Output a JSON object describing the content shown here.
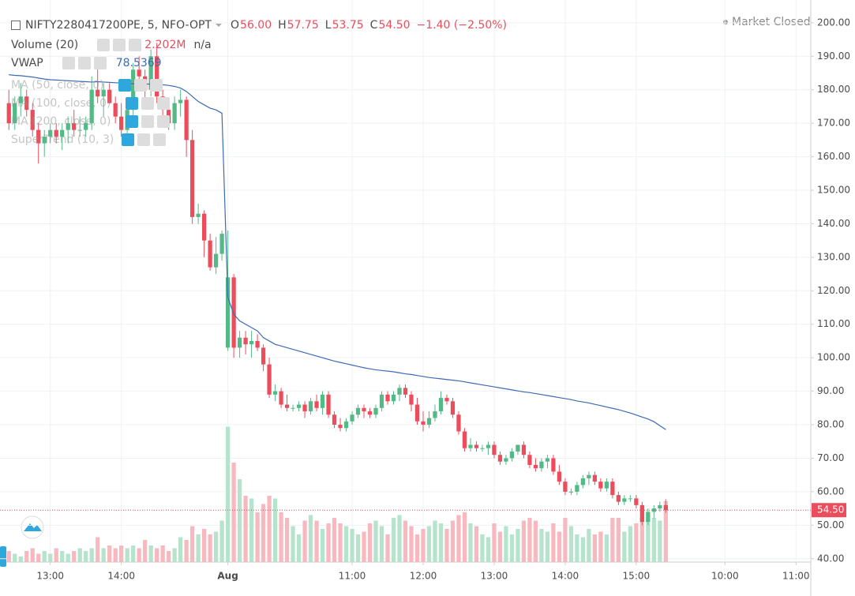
{
  "chart_data": {
    "type": "candlestick",
    "title": "NIFTY2280417200PE, 5, NFO-OPT",
    "ohlc_labels": [
      {
        "key": "O",
        "value": "56.00"
      },
      {
        "key": "H",
        "value": "57.75"
      },
      {
        "key": "L",
        "value": "53.75"
      },
      {
        "key": "C",
        "value": "54.50"
      }
    ],
    "change": "−1.40 (−2.50%)",
    "status": "Market Closed",
    "x": [
      0,
      1,
      2,
      3,
      4,
      5,
      6,
      7,
      8,
      9,
      10,
      11,
      12,
      13,
      14,
      15,
      16,
      17,
      18,
      19,
      20,
      21,
      22,
      23,
      24,
      25,
      26,
      27,
      28,
      29,
      30,
      31,
      32,
      33,
      34,
      35,
      36,
      37,
      38,
      39,
      40,
      41,
      42,
      43,
      44,
      45,
      46,
      47,
      48,
      49,
      50,
      51,
      52,
      53,
      54,
      55,
      56,
      57,
      58,
      59,
      60,
      61,
      62,
      63,
      64,
      65,
      66,
      67,
      68,
      69,
      70,
      71,
      72,
      73,
      74,
      75,
      76,
      77,
      78,
      79,
      80,
      81,
      82,
      83,
      84,
      85,
      86,
      87,
      88,
      89,
      90,
      91,
      92,
      93,
      94,
      95,
      96,
      97,
      98,
      99,
      100,
      101,
      102,
      103,
      104,
      105,
      106,
      107,
      108,
      109,
      110,
      111
    ],
    "open": [
      176,
      170,
      176,
      178,
      174,
      168,
      164,
      166,
      168,
      166,
      168,
      170,
      168,
      168,
      170,
      180,
      178,
      180,
      176,
      172,
      168,
      174,
      186,
      184,
      180,
      190,
      178,
      174,
      170,
      176,
      177,
      165,
      142,
      143,
      135,
      127,
      131,
      103,
      124,
      103,
      106,
      104,
      105,
      103,
      98,
      89,
      90,
      86,
      85,
      85,
      86,
      84,
      87,
      85,
      89,
      83,
      80,
      79,
      81,
      83,
      85,
      84,
      83,
      85,
      89,
      87,
      89,
      91,
      89,
      86,
      81,
      80,
      82,
      84,
      88,
      87,
      83,
      78,
      73,
      74,
      73,
      73,
      74,
      71,
      69,
      70,
      72,
      74,
      71,
      68,
      67,
      69,
      70,
      66,
      63,
      60,
      60,
      62,
      64,
      65,
      63,
      61,
      63,
      59,
      57,
      58,
      58,
      56,
      51,
      54,
      55,
      56
    ],
    "high": [
      180,
      178,
      182,
      180,
      176,
      170,
      168,
      170,
      170,
      170,
      172,
      174,
      172,
      172,
      184,
      186,
      182,
      182,
      178,
      176,
      176,
      188,
      190,
      186,
      192,
      194,
      180,
      176,
      178,
      180,
      178,
      168,
      146,
      144,
      137,
      136,
      138,
      138,
      125,
      108,
      108,
      108,
      107,
      104,
      100,
      92,
      91,
      89,
      86,
      87,
      87,
      88,
      89,
      90,
      90,
      84,
      82,
      82,
      84,
      86,
      86,
      85,
      86,
      90,
      90,
      90,
      92,
      92,
      90,
      88,
      84,
      84,
      86,
      90,
      89,
      88,
      84,
      79,
      76,
      75,
      74,
      75,
      75,
      72,
      71,
      73,
      74,
      75,
      72,
      70,
      70,
      71,
      71,
      68,
      64,
      61,
      63,
      65,
      66,
      66,
      64,
      64,
      64,
      60,
      59,
      59,
      59,
      57,
      55,
      56,
      57,
      57.75
    ],
    "low": [
      168,
      168,
      172,
      172,
      166,
      158,
      160,
      164,
      164,
      162,
      164,
      166,
      166,
      166,
      168,
      176,
      172,
      176,
      170,
      166,
      166,
      172,
      180,
      176,
      178,
      176,
      172,
      168,
      168,
      172,
      160,
      140,
      140,
      130,
      126,
      125,
      129,
      102,
      100,
      100,
      101,
      100,
      102,
      96,
      88,
      87,
      85,
      84,
      84,
      84,
      82,
      83,
      84,
      83,
      82,
      79,
      78,
      78,
      80,
      82,
      82,
      82,
      82,
      84,
      86,
      86,
      87,
      88,
      84,
      80,
      78,
      79,
      81,
      83,
      86,
      82,
      77,
      72,
      72,
      72,
      72,
      71,
      70,
      68,
      68,
      69,
      71,
      70,
      67,
      66,
      66,
      67,
      65,
      62,
      59,
      59,
      59,
      61,
      62,
      62,
      60,
      60,
      58,
      56,
      56,
      57,
      55,
      50,
      50,
      52,
      54,
      53.75
    ],
    "close": [
      170,
      176,
      178,
      174,
      168,
      164,
      166,
      168,
      166,
      168,
      170,
      168,
      168,
      170,
      180,
      178,
      180,
      176,
      172,
      168,
      174,
      186,
      184,
      180,
      190,
      178,
      174,
      170,
      176,
      177,
      165,
      142,
      143,
      135,
      127,
      131,
      137,
      124,
      103,
      106,
      104,
      105,
      103,
      98,
      89,
      90,
      86,
      85,
      85,
      86,
      84,
      87,
      85,
      89,
      83,
      80,
      79,
      81,
      83,
      85,
      84,
      83,
      85,
      89,
      87,
      89,
      91,
      89,
      86,
      81,
      80,
      82,
      84,
      88,
      87,
      83,
      78,
      73,
      74,
      73,
      73,
      74,
      71,
      69,
      70,
      72,
      74,
      71,
      68,
      67,
      69,
      70,
      66,
      63,
      60,
      60,
      62,
      64,
      65,
      63,
      61,
      63,
      59,
      57,
      58,
      58,
      56,
      51,
      54,
      55,
      56,
      54.5
    ],
    "up_color": "#53b987",
    "down_color": "#eb4d5c",
    "volume": {
      "name": "Volume (20)",
      "value_label": "2.202M",
      "ma_label": "n/a",
      "up_color": "#b6e3cc",
      "down_color": "#f7b9bf",
      "values": [
        0.4,
        0.3,
        0.2,
        0.4,
        0.5,
        0.3,
        0.4,
        0.3,
        0.5,
        0.4,
        0.3,
        0.4,
        0.5,
        0.4,
        0.5,
        0.9,
        0.5,
        0.6,
        0.5,
        0.6,
        0.5,
        0.6,
        0.5,
        0.8,
        0.6,
        0.5,
        0.6,
        0.4,
        0.5,
        0.9,
        0.8,
        1.3,
        1.0,
        1.2,
        1.0,
        1.1,
        1.5,
        4.9,
        3.6,
        3.0,
        2.4,
        2.3,
        1.8,
        2.1,
        2.4,
        2.3,
        1.8,
        1.6,
        1.3,
        1.0,
        1.5,
        1.7,
        1.5,
        1.2,
        1.4,
        1.6,
        1.4,
        1.3,
        1.2,
        1.0,
        1.1,
        1.4,
        1.5,
        1.3,
        1.0,
        1.6,
        1.7,
        1.5,
        1.3,
        1.0,
        1.2,
        1.3,
        1.5,
        1.4,
        1.2,
        1.5,
        1.7,
        1.8,
        1.4,
        1.3,
        1.0,
        0.9,
        1.4,
        1.1,
        1.3,
        1.0,
        1.2,
        1.5,
        1.6,
        1.5,
        1.2,
        1.1,
        1.4,
        1.1,
        1.6,
        1.3,
        1.0,
        0.9,
        1.2,
        1.0,
        1.1,
        1.0,
        1.6,
        1.6,
        1.1,
        1.3,
        1.4,
        1.6,
        1.7,
        1.6,
        1.5,
        2.202
      ]
    },
    "vwap": {
      "name": "VWAP",
      "value_label": "78.5369",
      "color": "#3d6bb3",
      "values": [
        184.5,
        184.3,
        184.2,
        184,
        183.8,
        183.5,
        183.2,
        183,
        182.9,
        182.8,
        182.7,
        182.6,
        182.5,
        182.4,
        182.3,
        182.4,
        182.3,
        182.2,
        182.1,
        182,
        181.8,
        181.8,
        181.8,
        181.7,
        181.7,
        181.6,
        181.5,
        181.3,
        181,
        180.5,
        179.5,
        178,
        176.5,
        175.5,
        174.5,
        174,
        173,
        118,
        113,
        111,
        110,
        109,
        108,
        106,
        105,
        104,
        103.5,
        103,
        102.5,
        102,
        101.5,
        101,
        100.5,
        100,
        99.5,
        99,
        98.6,
        98.2,
        97.8,
        97.4,
        97,
        96.7,
        96.4,
        96.2,
        96,
        95.8,
        95.5,
        95.2,
        95,
        94.7,
        94.4,
        94.1,
        93.9,
        93.7,
        93.5,
        93.3,
        93.1,
        92.8,
        92.5,
        92.2,
        91.9,
        91.6,
        91.3,
        91,
        90.7,
        90.4,
        90.1,
        89.8,
        89.6,
        89.3,
        89,
        88.7,
        88.4,
        88.1,
        87.8,
        87.5,
        87.1,
        86.8,
        86.5,
        86.1,
        85.7,
        85.3,
        84.9,
        84.5,
        84,
        83.5,
        82.9,
        82.3,
        81.7,
        80.9,
        79.7,
        78.5369
      ]
    },
    "studies": [
      "MA (50, close, 0)",
      "MA (100, close, 0)",
      "MA (200, close, 0)",
      "SuperTrend (10, 3)"
    ],
    "last_price": {
      "value": 54.5,
      "label": "54.50"
    },
    "xlim": [
      -1.5,
      135.5
    ],
    "xticks": [
      {
        "value": 7,
        "label": "13:00"
      },
      {
        "value": 19,
        "label": "14:00"
      },
      {
        "value": 37,
        "label": "Aug"
      },
      {
        "value": 58,
        "label": "11:00"
      },
      {
        "value": 70,
        "label": "12:00"
      },
      {
        "value": 82,
        "label": "13:00"
      },
      {
        "value": 94,
        "label": "14:00"
      },
      {
        "value": 106,
        "label": "15:00"
      },
      {
        "value": 121,
        "label": "10:00"
      },
      {
        "value": 133,
        "label": "11:00"
      }
    ],
    "ylim": [
      39,
      206.8
    ],
    "yticks": [
      {
        "value": 40,
        "label": "40.00"
      },
      {
        "value": 50,
        "label": "50.00"
      },
      {
        "value": 60,
        "label": "60.00"
      },
      {
        "value": 70,
        "label": "70.00"
      },
      {
        "value": 80,
        "label": "80.00"
      },
      {
        "value": 90,
        "label": "90.00"
      },
      {
        "value": 100,
        "label": "100.00"
      },
      {
        "value": 110,
        "label": "110.00"
      },
      {
        "value": 120,
        "label": "120.00"
      },
      {
        "value": 130,
        "label": "130.00"
      },
      {
        "value": 140,
        "label": "140.00"
      },
      {
        "value": 150,
        "label": "150.00"
      },
      {
        "value": 160,
        "label": "160.00"
      },
      {
        "value": 170,
        "label": "170.00"
      },
      {
        "value": 180,
        "label": "180.00"
      },
      {
        "value": 190,
        "label": "190.00"
      },
      {
        "value": 200,
        "label": "200.00"
      }
    ],
    "grid": true
  }
}
